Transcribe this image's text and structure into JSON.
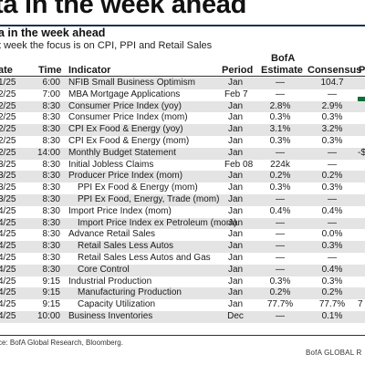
{
  "header": {
    "title": "ta in the week ahead",
    "subtitle": "a in the week ahead",
    "caption": "t week the focus is on CPI, PPI and Retail Sales"
  },
  "table": {
    "columns": {
      "date": "ate",
      "time": "Time",
      "indicator": "Indicator",
      "period": "Period",
      "bofa_line1": "BofA",
      "bofa_line2": "Estimate",
      "consensus": "Consensus",
      "prior": "P"
    },
    "rows": [
      {
        "date": "1/25",
        "time": "6:00",
        "indicator": "NFIB Small Business Optimism",
        "period": "Jan",
        "bofa": "—",
        "consensus": "104.7",
        "prior": ""
      },
      {
        "date": "2/25",
        "time": "7:00",
        "indicator": "MBA Mortgage Applications",
        "period": "Feb 7",
        "bofa": "—",
        "consensus": "—",
        "prior": ""
      },
      {
        "date": "2/25",
        "time": "8:30",
        "indicator": "Consumer Price Index (yoy)",
        "period": "Jan",
        "bofa": "2.8%",
        "consensus": "2.9%",
        "prior": ""
      },
      {
        "date": "2/25",
        "time": "8:30",
        "indicator": "Consumer Price Index (mom)",
        "period": "Jan",
        "bofa": "0.3%",
        "consensus": "0.3%",
        "prior": ""
      },
      {
        "date": "2/25",
        "time": "8:30",
        "indicator": "CPI Ex Food & Energy (yoy)",
        "period": "Jan",
        "bofa": "3.1%",
        "consensus": "3.2%",
        "prior": ""
      },
      {
        "date": "2/25",
        "time": "8:30",
        "indicator": "CPI Ex Food & Energy (mom)",
        "period": "Jan",
        "bofa": "0.3%",
        "consensus": "0.3%",
        "prior": ""
      },
      {
        "date": "2/25",
        "time": "14:00",
        "indicator": "Monthly Budget Statement",
        "period": "Jan",
        "bofa": "—",
        "consensus": "—",
        "prior": "-$"
      },
      {
        "date": "3/25",
        "time": "8:30",
        "indicator": "Initial Jobless Claims",
        "period": "Feb 08",
        "bofa": "224k",
        "consensus": "—",
        "prior": ""
      },
      {
        "date": "3/25",
        "time": "8:30",
        "indicator": "Producer Price Index (mom)",
        "period": "Jan",
        "bofa": "0.2%",
        "consensus": "0.2%",
        "prior": ""
      },
      {
        "date": "3/25",
        "time": "8:30",
        "indicator": "PPI Ex Food & Energy (mom)",
        "period": "Jan",
        "bofa": "0.3%",
        "consensus": "0.3%",
        "prior": ""
      },
      {
        "date": "3/25",
        "time": "8:30",
        "indicator": "PPI Ex Food, Energy, Trade (mom)",
        "period": "Jan",
        "bofa": "—",
        "consensus": "—",
        "prior": ""
      },
      {
        "date": "4/25",
        "time": "8:30",
        "indicator": "Import Price Index (mom)",
        "period": "Jan",
        "bofa": "0.4%",
        "consensus": "0.4%",
        "prior": ""
      },
      {
        "date": "4/25",
        "time": "8:30",
        "indicator": "Import Price Index ex Petroleum (mom)",
        "period": "Jan",
        "bofa": "—",
        "consensus": "—",
        "prior": ""
      },
      {
        "date": "4/25",
        "time": "8:30",
        "indicator": "Advance Retail Sales",
        "period": "Jan",
        "bofa": "—",
        "consensus": "0.0%",
        "prior": ""
      },
      {
        "date": "4/25",
        "time": "8:30",
        "indicator": "Retail Sales Less Autos",
        "period": "Jan",
        "bofa": "—",
        "consensus": "0.3%",
        "prior": ""
      },
      {
        "date": "4/25",
        "time": "8:30",
        "indicator": "Retail Sales Less Autos and Gas",
        "period": "Jan",
        "bofa": "—",
        "consensus": "—",
        "prior": ""
      },
      {
        "date": "4/25",
        "time": "8:30",
        "indicator": "Core Control",
        "period": "Jan",
        "bofa": "—",
        "consensus": "0.4%",
        "prior": ""
      },
      {
        "date": "4/25",
        "time": "9:15",
        "indicator": "Industrial Production",
        "period": "Jan",
        "bofa": "0.3%",
        "consensus": "0.3%",
        "prior": ""
      },
      {
        "date": "4/25",
        "time": "9:15",
        "indicator": "Manufacturing Production",
        "period": "Jan",
        "bofa": "0.2%",
        "consensus": "0.2%",
        "prior": ""
      },
      {
        "date": "4/25",
        "time": "9:15",
        "indicator": "Capacity Utilization",
        "period": "Jan",
        "bofa": "77.7%",
        "consensus": "77.7%",
        "prior": "7"
      },
      {
        "date": "4/25",
        "time": "10:00",
        "indicator": "Business Inventories",
        "period": "Dec",
        "bofa": "—",
        "consensus": "0.1%",
        "prior": ""
      }
    ]
  },
  "footer": {
    "source": "ce: BofA Global Research, Bloomberg.",
    "brand": "BofA GLOBAL R"
  },
  "colors": {
    "accent_rule": "#1f2f55",
    "row_shade": "#e4e4e4",
    "brand_green": "#0f6e3a"
  }
}
